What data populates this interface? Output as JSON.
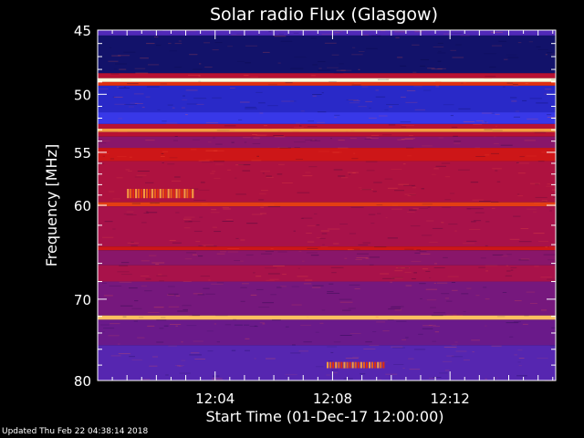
{
  "chart_data": {
    "type": "heatmap",
    "title": "Solar radio Flux (Glasgow)",
    "xlabel": "Start Time (01-Dec-17 12:00:00)",
    "ylabel": "Frequency [MHz]",
    "x_range_minutes": [
      0,
      15.6
    ],
    "x_ticks": [
      {
        "label": "12:04",
        "value": 4
      },
      {
        "label": "12:08",
        "value": 8
      },
      {
        "label": "12:12",
        "value": 12
      }
    ],
    "y_axis_scale": "log",
    "y_range_mhz": [
      45,
      80
    ],
    "y_ticks": [
      {
        "label": "45",
        "value": 45
      },
      {
        "label": "50",
        "value": 50
      },
      {
        "label": "55",
        "value": 55
      },
      {
        "label": "60",
        "value": 60
      },
      {
        "label": "70",
        "value": 70
      },
      {
        "label": "80",
        "value": 80
      }
    ],
    "y_minor_ticks_mhz": [
      46,
      47,
      48,
      49,
      51,
      52,
      53,
      54,
      56,
      57,
      58,
      59,
      62,
      64,
      66,
      68,
      72,
      74,
      76,
      78
    ],
    "colormap": [
      "#000000",
      "#10105a",
      "#1a1aa8",
      "#3838e8",
      "#6a1a8a",
      "#a8124a",
      "#c8101a",
      "#e03010",
      "#f07820",
      "#fac060",
      "#ffffd8"
    ],
    "frequency_bands": [
      {
        "from_mhz": 45.0,
        "to_mhz": 45.4,
        "level": 0.35
      },
      {
        "from_mhz": 45.4,
        "to_mhz": 48.3,
        "level": 0.12
      },
      {
        "from_mhz": 48.3,
        "to_mhz": 48.7,
        "level": 0.55
      },
      {
        "from_mhz": 48.7,
        "to_mhz": 49.0,
        "level": 1.0
      },
      {
        "from_mhz": 49.0,
        "to_mhz": 49.3,
        "level": 0.7
      },
      {
        "from_mhz": 49.3,
        "to_mhz": 51.5,
        "level": 0.25
      },
      {
        "from_mhz": 51.5,
        "to_mhz": 52.5,
        "level": 0.3
      },
      {
        "from_mhz": 52.5,
        "to_mhz": 52.9,
        "level": 0.55
      },
      {
        "from_mhz": 52.9,
        "to_mhz": 53.2,
        "level": 0.85
      },
      {
        "from_mhz": 53.2,
        "to_mhz": 53.6,
        "level": 0.55
      },
      {
        "from_mhz": 53.6,
        "to_mhz": 54.6,
        "level": 0.45
      },
      {
        "from_mhz": 54.6,
        "to_mhz": 55.8,
        "level": 0.62
      },
      {
        "from_mhz": 55.8,
        "to_mhz": 59.7,
        "level": 0.52
      },
      {
        "from_mhz": 59.7,
        "to_mhz": 60.1,
        "level": 0.72
      },
      {
        "from_mhz": 60.1,
        "to_mhz": 64.2,
        "level": 0.5
      },
      {
        "from_mhz": 64.2,
        "to_mhz": 64.6,
        "level": 0.62
      },
      {
        "from_mhz": 64.6,
        "to_mhz": 66.2,
        "level": 0.45
      },
      {
        "from_mhz": 66.2,
        "to_mhz": 68.0,
        "level": 0.5
      },
      {
        "from_mhz": 68.0,
        "to_mhz": 71.9,
        "level": 0.42
      },
      {
        "from_mhz": 71.9,
        "to_mhz": 72.4,
        "level": 0.9
      },
      {
        "from_mhz": 72.4,
        "to_mhz": 75.5,
        "level": 0.4
      },
      {
        "from_mhz": 75.5,
        "to_mhz": 80.0,
        "level": 0.36
      }
    ],
    "bursts": [
      {
        "t_start_min": 1.0,
        "t_end_min": 3.3,
        "f_low_mhz": 58.4,
        "f_high_mhz": 59.3,
        "level": 0.85
      },
      {
        "t_start_min": 7.8,
        "t_end_min": 9.8,
        "f_low_mhz": 77.6,
        "f_high_mhz": 78.4,
        "level": 0.85
      }
    ]
  },
  "footer": {
    "updated_text": "Updated Thu Feb 22 04:38:14 2018"
  },
  "colors": {
    "background": "#000000",
    "text": "#ffffff"
  }
}
